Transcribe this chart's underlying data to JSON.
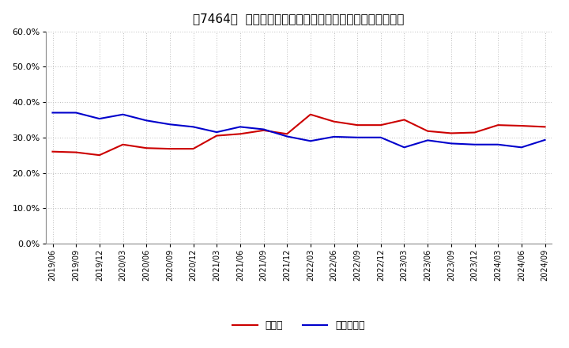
{
  "title": "［7464］  現須金、有利子負債の総資産に対する比率の推移",
  "x_labels": [
    "2019/06",
    "2019/09",
    "2019/12",
    "2020/03",
    "2020/06",
    "2020/09",
    "2020/12",
    "2021/03",
    "2021/06",
    "2021/09",
    "2021/12",
    "2022/03",
    "2022/06",
    "2022/09",
    "2022/12",
    "2023/03",
    "2023/06",
    "2023/09",
    "2023/12",
    "2024/03",
    "2024/06",
    "2024/09"
  ],
  "cash": [
    0.26,
    0.258,
    0.25,
    0.28,
    0.27,
    0.268,
    0.268,
    0.305,
    0.31,
    0.32,
    0.31,
    0.365,
    0.345,
    0.335,
    0.335,
    0.35,
    0.318,
    0.312,
    0.314,
    0.335,
    0.333,
    0.33
  ],
  "debt": [
    0.37,
    0.37,
    0.353,
    0.365,
    0.348,
    0.337,
    0.33,
    0.315,
    0.33,
    0.323,
    0.303,
    0.29,
    0.302,
    0.3,
    0.3,
    0.272,
    0.292,
    0.283,
    0.28,
    0.28,
    0.272,
    0.293
  ],
  "cash_color": "#cc0000",
  "debt_color": "#0000cc",
  "ylim": [
    0.0,
    0.6
  ],
  "yticks": [
    0.0,
    0.1,
    0.2,
    0.3,
    0.4,
    0.5,
    0.6
  ],
  "legend_cash": "現須金",
  "legend_debt": "有利子負債",
  "background_color": "#ffffff",
  "grid_color": "#aaaaaa"
}
